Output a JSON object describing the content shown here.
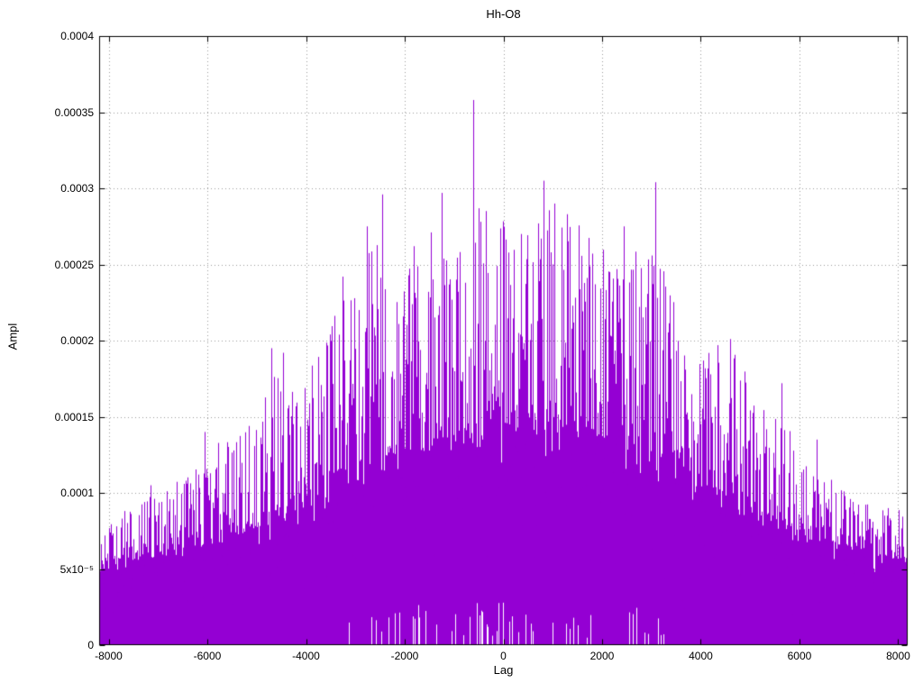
{
  "chart_data": {
    "type": "bar",
    "title": "Hh-O8",
    "xlabel": "Lag",
    "ylabel": "Ampl",
    "xlim": [
      -8192,
      8192
    ],
    "ylim": [
      0,
      0.0004
    ],
    "grid": true,
    "legend": false,
    "series_color": "#9400d3",
    "grid_color": "#9a9a9a",
    "border_color": "#000000",
    "x_ticks": [
      {
        "value": -8000,
        "label": "-8000"
      },
      {
        "value": -6000,
        "label": "-6000"
      },
      {
        "value": -4000,
        "label": "-4000"
      },
      {
        "value": -2000,
        "label": "-2000"
      },
      {
        "value": 0,
        "label": "0"
      },
      {
        "value": 2000,
        "label": "2000"
      },
      {
        "value": 4000,
        "label": "4000"
      },
      {
        "value": 6000,
        "label": "6000"
      },
      {
        "value": 8000,
        "label": "8000"
      }
    ],
    "y_ticks": [
      {
        "value": 0,
        "label": "0"
      },
      {
        "value": 5e-05,
        "label": "5x10⁻⁵"
      },
      {
        "value": 0.0001,
        "label": "0.0001"
      },
      {
        "value": 0.00015,
        "label": "0.00015"
      },
      {
        "value": 0.0002,
        "label": "0.0002"
      },
      {
        "value": 0.00025,
        "label": "0.00025"
      },
      {
        "value": 0.0003,
        "label": "0.0003"
      },
      {
        "value": 0.00035,
        "label": "0.00035"
      },
      {
        "value": 0.0004,
        "label": "0.0004"
      }
    ],
    "global_max": {
      "x": -600,
      "y": 0.000358
    },
    "envelope_peak": [
      [
        -8192,
        8e-05
      ],
      [
        -7600,
        9e-05
      ],
      [
        -7000,
        0.0001
      ],
      [
        -6400,
        0.00012
      ],
      [
        -6000,
        0.00013
      ],
      [
        -5400,
        0.00014
      ],
      [
        -5000,
        0.00015
      ],
      [
        -4600,
        0.00019
      ],
      [
        -4200,
        0.00017
      ],
      [
        -3800,
        0.00019
      ],
      [
        -3400,
        0.00022
      ],
      [
        -3000,
        0.00024
      ],
      [
        -2600,
        0.00027
      ],
      [
        -2200,
        0.00024
      ],
      [
        -1800,
        0.00025
      ],
      [
        -1400,
        0.00028
      ],
      [
        -1000,
        0.00027
      ],
      [
        -600,
        0.0003
      ],
      [
        -200,
        0.00028
      ],
      [
        0,
        0.00028
      ],
      [
        300,
        0.00027
      ],
      [
        700,
        0.00029
      ],
      [
        1100,
        0.00029
      ],
      [
        1500,
        0.00028
      ],
      [
        1900,
        0.00026
      ],
      [
        2300,
        0.00026
      ],
      [
        2700,
        0.00026
      ],
      [
        3100,
        0.00028
      ],
      [
        3500,
        0.00022
      ],
      [
        3900,
        0.0002
      ],
      [
        4300,
        0.00019
      ],
      [
        4700,
        0.0002
      ],
      [
        5100,
        0.00016
      ],
      [
        5500,
        0.00015
      ],
      [
        5900,
        0.00014
      ],
      [
        6300,
        0.00012
      ],
      [
        6700,
        0.00011
      ],
      [
        7100,
        0.0001
      ],
      [
        7500,
        9e-05
      ],
      [
        8192,
        9e-05
      ]
    ],
    "envelope_base": [
      [
        -8192,
        5.5e-05
      ],
      [
        -7000,
        6e-05
      ],
      [
        -6000,
        7e-05
      ],
      [
        -5000,
        8e-05
      ],
      [
        -4000,
        0.0001
      ],
      [
        -3000,
        0.00012
      ],
      [
        -2000,
        0.00013
      ],
      [
        -1000,
        0.00014
      ],
      [
        0,
        0.00015
      ],
      [
        1000,
        0.00015
      ],
      [
        2000,
        0.00014
      ],
      [
        3000,
        0.00013
      ],
      [
        4000,
        0.00011
      ],
      [
        5000,
        9e-05
      ],
      [
        6000,
        7.5e-05
      ],
      [
        7000,
        6.5e-05
      ],
      [
        8192,
        5.5e-05
      ]
    ],
    "notable_spikes": [
      {
        "x": -600,
        "y": 0.000358
      },
      {
        "x": 830,
        "y": 0.000305
      },
      {
        "x": 3080,
        "y": 0.000304
      },
      {
        "x": -1250,
        "y": 0.000297
      },
      {
        "x": -2450,
        "y": 0.000296
      },
      {
        "x": 1050,
        "y": 0.00029
      },
      {
        "x": 1300,
        "y": 0.000283
      },
      {
        "x": -2750,
        "y": 0.000275
      },
      {
        "x": 2450,
        "y": 0.000275
      },
      {
        "x": -1800,
        "y": 0.000262
      },
      {
        "x": -3250,
        "y": 0.000242
      },
      {
        "x": 2150,
        "y": 0.000245
      },
      {
        "x": -3500,
        "y": 0.000204
      },
      {
        "x": 4600,
        "y": 0.000201
      },
      {
        "x": -4450,
        "y": 0.000192
      },
      {
        "x": -4700,
        "y": 0.000195
      },
      {
        "x": 4350,
        "y": 0.000197
      },
      {
        "x": 5650,
        "y": 0.000172
      },
      {
        "x": -6050,
        "y": 0.00014
      },
      {
        "x": 6350,
        "y": 0.000135
      },
      {
        "x": -7150,
        "y": 0.000105
      },
      {
        "x": 7800,
        "y": 9e-05
      }
    ],
    "n_bars": 6400,
    "seed": 1337
  }
}
